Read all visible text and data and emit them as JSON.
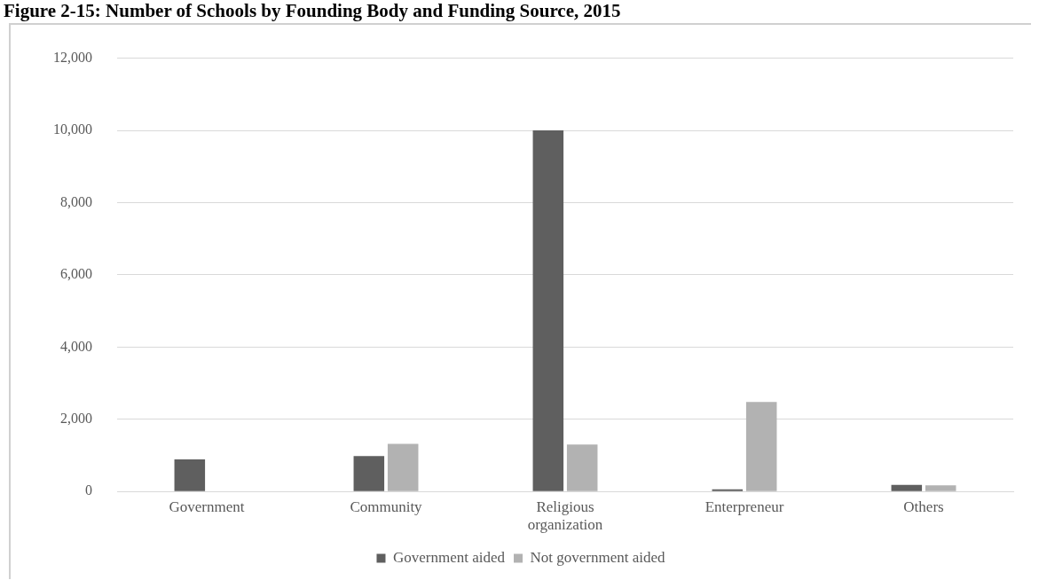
{
  "chart_data": {
    "type": "bar",
    "title": "Figure 2-15: Number of Schools by Founding Body and Funding Source, 2015",
    "categories": [
      "Government",
      "Community",
      "Religious organization",
      "Enterpreneur",
      "Others"
    ],
    "series": [
      {
        "name": "Government aided",
        "color": "#5f5f5f",
        "values": [
          890,
          980,
          10000,
          60,
          180
        ]
      },
      {
        "name": "Not government aided",
        "color": "#b2b2b2",
        "values": [
          0,
          1320,
          1300,
          2480,
          170
        ]
      }
    ],
    "ylim": [
      0,
      12000
    ],
    "yticks": [
      0,
      {
        "value": 2000,
        "label": "2,000"
      },
      {
        "value": 4000,
        "label": "4,000"
      },
      {
        "value": 6000,
        "label": "6,000"
      },
      {
        "value": 8000,
        "label": "8,000"
      },
      {
        "value": 10000,
        "label": "10,000"
      },
      {
        "value": 12000,
        "label": "12,000"
      }
    ],
    "grid": "y",
    "legend": "bottom"
  }
}
